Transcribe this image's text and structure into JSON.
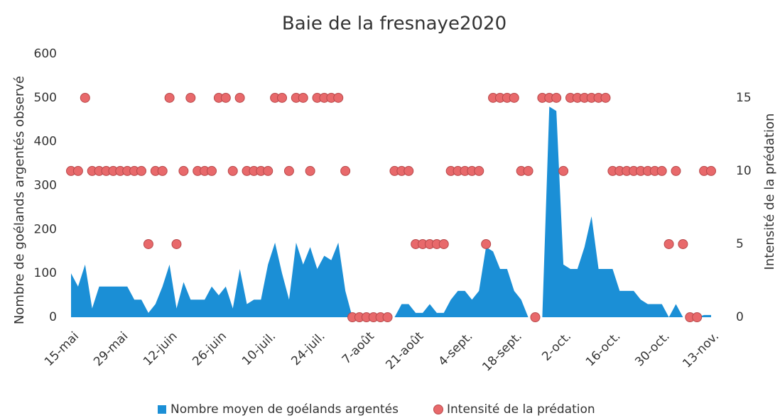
{
  "chart_data": {
    "type": "combo",
    "title": "Baie de la fresnaye2020",
    "ylabel": "Nombre de goélands argentés observé",
    "y2label": "Intensité de la prédation",
    "categories": [
      "15-mai",
      null,
      null,
      null,
      null,
      null,
      null,
      "29-mai",
      null,
      null,
      null,
      null,
      null,
      null,
      "12-juin",
      null,
      null,
      null,
      null,
      null,
      null,
      "26-juin",
      null,
      null,
      null,
      null,
      null,
      null,
      "10-juil.",
      null,
      null,
      null,
      null,
      null,
      null,
      "24-juil.",
      null,
      null,
      null,
      null,
      null,
      null,
      "7-août",
      null,
      null,
      null,
      null,
      null,
      null,
      "21-août",
      null,
      null,
      null,
      null,
      null,
      null,
      "4-sept.",
      null,
      null,
      null,
      null,
      null,
      null,
      "18-sept.",
      null,
      null,
      null,
      null,
      null,
      null,
      "2-oct.",
      null,
      null,
      null,
      null,
      null,
      null,
      "16-oct.",
      null,
      null,
      null,
      null,
      null,
      null,
      "30-oct.",
      null,
      null,
      null,
      null,
      null,
      null,
      "13-nov."
    ],
    "series": [
      {
        "name": "Nombre moyen de goélands argentés",
        "type": "area",
        "color": "#1b8fd6",
        "values": [
          100,
          70,
          120,
          20,
          70,
          70,
          70,
          70,
          70,
          40,
          40,
          10,
          30,
          70,
          120,
          20,
          80,
          40,
          40,
          40,
          70,
          50,
          70,
          20,
          110,
          30,
          40,
          40,
          120,
          170,
          100,
          40,
          170,
          120,
          160,
          110,
          140,
          130,
          170,
          60,
          0,
          0,
          0,
          0,
          0,
          0,
          0,
          30,
          30,
          10,
          10,
          30,
          10,
          10,
          40,
          60,
          60,
          40,
          60,
          160,
          150,
          110,
          110,
          60,
          40,
          0,
          0,
          0,
          480,
          470,
          120,
          110,
          110,
          160,
          230,
          110,
          110,
          110,
          60,
          60,
          60,
          40,
          30,
          30,
          30,
          0,
          30,
          0,
          0,
          0,
          5,
          5
        ]
      },
      {
        "name": "Intensité de la prédation",
        "type": "scatter",
        "axis": "y2",
        "color": "#e8696b",
        "values": [
          10,
          10,
          15,
          10,
          10,
          10,
          10,
          10,
          10,
          10,
          10,
          5,
          10,
          10,
          15,
          5,
          10,
          15,
          10,
          10,
          10,
          15,
          15,
          10,
          15,
          10,
          10,
          10,
          10,
          15,
          15,
          10,
          15,
          15,
          10,
          15,
          15,
          15,
          15,
          10,
          0,
          0,
          0,
          0,
          0,
          0,
          10,
          10,
          10,
          5,
          5,
          5,
          5,
          5,
          10,
          10,
          10,
          10,
          10,
          5,
          15,
          15,
          15,
          15,
          10,
          10,
          0,
          15,
          15,
          15,
          10,
          15,
          15,
          15,
          15,
          15,
          15,
          10,
          10,
          10,
          10,
          10,
          10,
          10,
          10,
          5,
          10,
          5,
          0,
          0,
          10,
          10
        ]
      }
    ],
    "ylim": [
      0,
      600
    ],
    "yticks": [
      0,
      100,
      200,
      300,
      400,
      500,
      600
    ],
    "y2lim": [
      0,
      18
    ],
    "y2ticks": [
      0,
      5,
      10,
      15
    ],
    "legend": "bottom"
  }
}
